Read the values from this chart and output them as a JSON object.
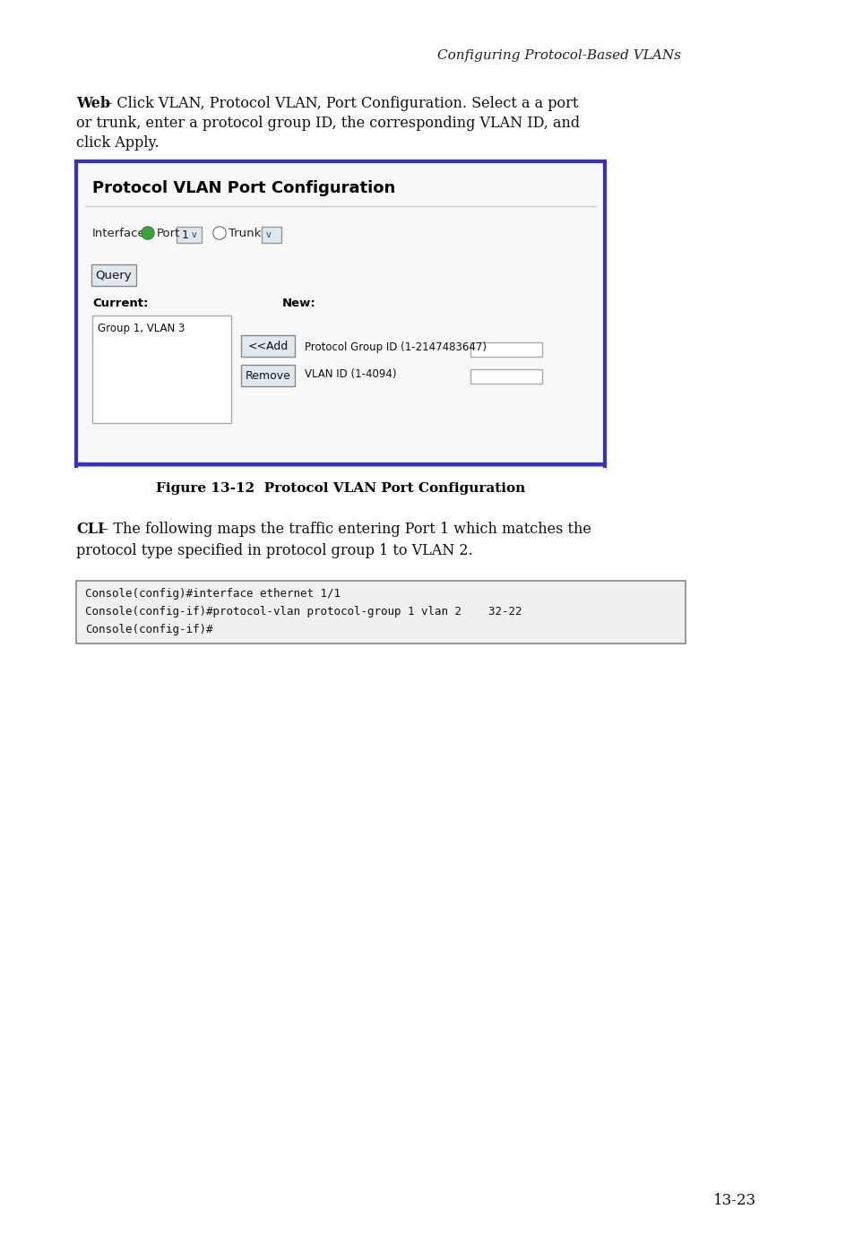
{
  "page_bg": "#ffffff",
  "header_text": "Configuring Protocol-Based VLANs",
  "header_font_style": "italic",
  "body_text_1": "Web – Click VLAN, Protocol VLAN, Port Configuration. Select a a port\nor trunk, enter a protocol group ID, the corresponding VLAN ID, and\nclick Apply.",
  "figure_caption": "Figure 13-12  Protocol VLAN Port Configuration",
  "cli_text": "CLI – The following maps the traffic entering Port 1 which matches the\nprotocol type specified in protocol group 1 to VLAN 2.",
  "code_lines": [
    "Console(config)#interface ethernet 1/1",
    "Console(config-if)#protocol-vlan protocol-group 1 vlan 2    32-22",
    "Console(config-if)#"
  ],
  "page_number": "13-23",
  "panel_title": "Protocol VLAN Port Configuration",
  "interface_label": "Interface",
  "port_label": "Port",
  "port_value": "1",
  "trunk_label": "Trunk",
  "query_label": "Query",
  "current_label": "Current:",
  "new_label": "New:",
  "current_item": "Group 1, VLAN 3",
  "add_btn": "<<Add",
  "remove_btn": "Remove",
  "proto_group_label": "Protocol Group ID (1-2147483647)",
  "vlan_id_label": "VLAN ID (1-4094)",
  "border_color": "#3333cc",
  "panel_border": "#aaaaaa",
  "code_bg": "#f0f0f0",
  "code_border": "#888888",
  "btn_bg": "#e0e8f0",
  "btn_border": "#999999",
  "input_bg": "#ffffff",
  "input_border": "#aaaaaa",
  "listbox_bg": "#ffffff",
  "listbox_border": "#aaaaaa"
}
